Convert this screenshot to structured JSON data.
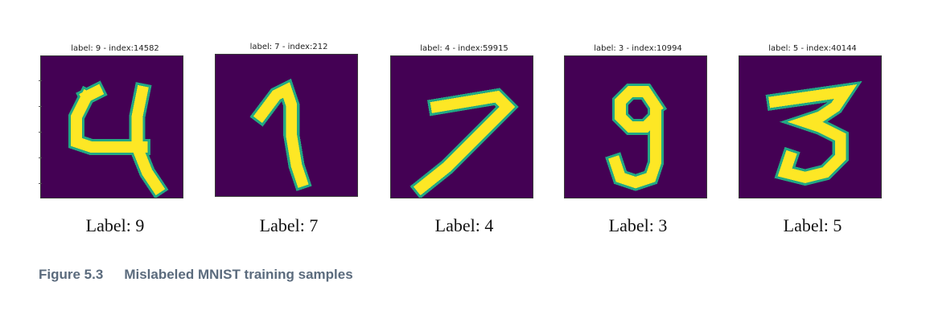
{
  "colors": {
    "background": "#440154",
    "stroke": "#fde725",
    "edge": "#22a884"
  },
  "panels": [
    {
      "title": "label: 9 - index:14582",
      "label": "Label: 9",
      "digit_shown": "4"
    },
    {
      "title": "label: 7 - index:212",
      "label": "Label: 7",
      "digit_shown": "1"
    },
    {
      "title": "label: 4 - index:59915",
      "label": "Label: 4",
      "digit_shown": "7"
    },
    {
      "title": "label: 3 - index:10994",
      "label": "Label: 3",
      "digit_shown": "9"
    },
    {
      "title": "label: 5 - index:40144",
      "label": "Label: 5",
      "digit_shown": "3"
    }
  ],
  "caption": {
    "figure_number": "Figure 5.3",
    "text": "Mislabeled MNIST training samples"
  }
}
